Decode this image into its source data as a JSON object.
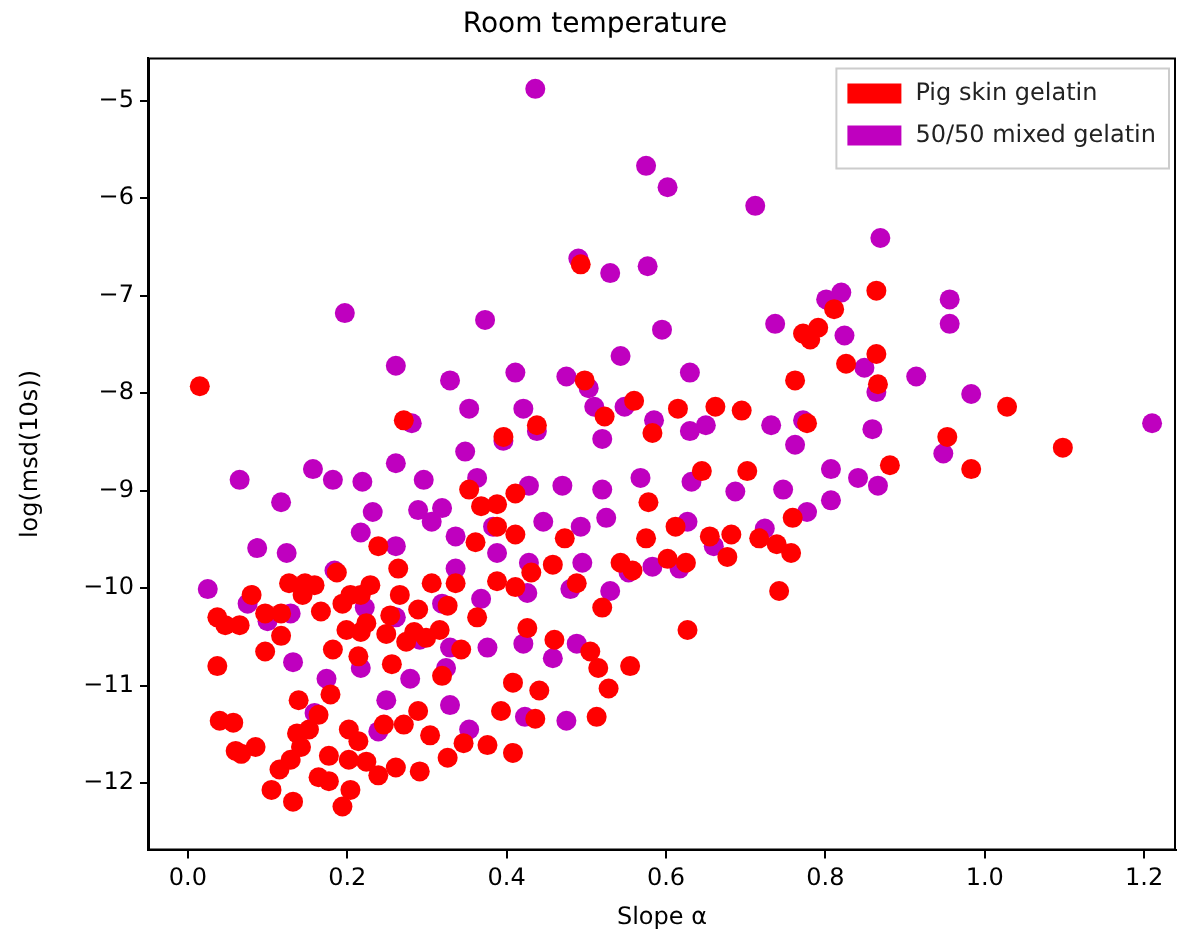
{
  "chart_data": {
    "type": "scatter",
    "title": "Room temperature",
    "xlabel": "Slope α",
    "ylabel": "log(msd(10s))",
    "xlim": [
      -0.05,
      1.24
    ],
    "ylim": [
      -12.69,
      -4.56
    ],
    "xticks": [
      {
        "value": 0,
        "label": "0.0"
      },
      {
        "value": 0.2,
        "label": "0.2"
      },
      {
        "value": 0.4,
        "label": "0.4"
      },
      {
        "value": 0.6,
        "label": "0.6"
      },
      {
        "value": 0.8,
        "label": "0.8"
      },
      {
        "value": 1.0,
        "label": "1.0"
      },
      {
        "value": 1.2,
        "label": "1.2"
      }
    ],
    "yticks": [
      {
        "value": -5,
        "label": "−5"
      },
      {
        "value": -6,
        "label": "−6"
      },
      {
        "value": -7,
        "label": "−7"
      },
      {
        "value": -8,
        "label": "−8"
      },
      {
        "value": -9,
        "label": "−9"
      },
      {
        "value": -10,
        "label": "−10"
      },
      {
        "value": -11,
        "label": "−11"
      },
      {
        "value": -12,
        "label": "−12"
      }
    ],
    "grid": false,
    "legend": "top right",
    "marker": "circle",
    "series": [
      {
        "name": "Pig skin gelatin",
        "color": "#ff0000",
        "x": [
          0.015,
          0.493,
          0.864,
          0.811,
          0.864,
          0.826,
          0.781,
          0.772,
          0.791,
          0.866,
          0.762,
          1.028,
          1.098,
          0.953,
          0.983,
          0.881,
          0.777,
          0.695,
          0.662,
          0.615,
          0.56,
          0.498,
          0.523,
          0.583,
          0.438,
          0.396,
          0.368,
          0.271,
          0.578,
          0.645,
          0.702,
          0.759,
          0.739,
          0.757,
          0.742,
          0.612,
          0.575,
          0.655,
          0.473,
          0.458,
          0.488,
          0.543,
          0.558,
          0.602,
          0.625,
          0.682,
          0.717,
          0.677,
          0.627,
          0.52,
          0.431,
          0.388,
          0.361,
          0.411,
          0.411,
          0.363,
          0.343,
          0.426,
          0.46,
          0.505,
          0.515,
          0.555,
          0.528,
          0.513,
          0.441,
          0.408,
          0.393,
          0.436,
          0.376,
          0.408,
          0.346,
          0.326,
          0.291,
          0.224,
          0.202,
          0.194,
          0.204,
          0.239,
          0.261,
          0.214,
          0.202,
          0.246,
          0.271,
          0.304,
          0.289,
          0.319,
          0.256,
          0.214,
          0.179,
          0.164,
          0.152,
          0.137,
          0.142,
          0.129,
          0.115,
          0.105,
          0.132,
          0.164,
          0.177,
          0.085,
          0.06,
          0.04,
          0.037,
          0.037,
          0.047,
          0.065,
          0.08,
          0.117,
          0.097,
          0.117,
          0.127,
          0.097,
          0.144,
          0.167,
          0.199,
          0.217,
          0.224,
          0.254,
          0.284,
          0.316,
          0.274,
          0.182,
          0.147,
          0.159,
          0.187,
          0.204,
          0.229,
          0.194,
          0.249,
          0.217,
          0.239,
          0.264,
          0.266,
          0.306,
          0.326,
          0.388,
          0.411,
          0.388,
          0.353,
          0.336,
          0.289,
          0.299,
          0.177,
          0.067,
          0.057,
          0.139
        ],
        "values": [
          -7.93,
          -6.68,
          -6.95,
          -7.14,
          -7.6,
          -7.7,
          -7.45,
          -7.39,
          -7.33,
          -7.91,
          -7.87,
          -8.14,
          -8.56,
          -8.45,
          -8.78,
          -8.74,
          -8.31,
          -8.18,
          -8.14,
          -8.16,
          -8.08,
          -7.87,
          -8.24,
          -8.41,
          -8.33,
          -8.45,
          -9.16,
          -8.28,
          -9.12,
          -8.8,
          -8.8,
          -9.28,
          -9.55,
          -9.64,
          -10.03,
          -9.37,
          -9.49,
          -9.47,
          -9.49,
          -9.76,
          -9.95,
          -9.74,
          -9.82,
          -9.7,
          -9.74,
          -9.45,
          -9.49,
          -9.68,
          -10.43,
          -10.2,
          -9.84,
          -9.93,
          -9.53,
          -9.45,
          -9.99,
          -10.3,
          -10.63,
          -10.41,
          -10.53,
          -10.65,
          -10.82,
          -10.8,
          -11.03,
          -11.32,
          -11.05,
          -10.97,
          -11.26,
          -11.34,
          -11.61,
          -11.69,
          -11.59,
          -11.74,
          -11.88,
          -11.78,
          -11.76,
          -12.24,
          -12.07,
          -11.92,
          -11.84,
          -11.57,
          -11.45,
          -11.4,
          -11.4,
          -11.51,
          -11.26,
          -10.9,
          -10.78,
          -10.7,
          -11.09,
          -11.3,
          -11.45,
          -11.49,
          -11.63,
          -11.76,
          -11.86,
          -12.07,
          -12.19,
          -11.94,
          -11.72,
          -11.63,
          -11.67,
          -11.36,
          -10.8,
          -10.3,
          -10.38,
          -10.38,
          -10.07,
          -10.26,
          -10.65,
          -10.49,
          -9.95,
          -10.26,
          -10.07,
          -10.24,
          -10.43,
          -10.45,
          -10.36,
          -10.28,
          -10.45,
          -10.43,
          -10.55,
          -10.63,
          -9.95,
          -9.97,
          -9.84,
          -10.07,
          -9.97,
          -10.16,
          -10.47,
          -10.07,
          -9.57,
          -9.8,
          -10.07,
          -9.95,
          -10.18,
          -9.37,
          -9.03,
          -9.14,
          -8.99,
          -9.95,
          -10.22,
          -10.51,
          -11.98,
          -11.7,
          -11.38,
          -11.15
        ]
      },
      {
        "name": "50/50 mixed gelatin",
        "color": "#bf00bf",
        "x": [
          0.436,
          0.575,
          0.602,
          0.712,
          0.49,
          0.577,
          0.53,
          0.869,
          0.801,
          0.956,
          0.197,
          0.373,
          0.595,
          0.956,
          0.737,
          0.824,
          0.543,
          0.411,
          0.475,
          0.914,
          0.503,
          0.864,
          0.983,
          0.63,
          0.261,
          0.329,
          0.353,
          0.421,
          0.51,
          0.548,
          0.585,
          0.281,
          0.65,
          0.732,
          0.772,
          0.859,
          1.21,
          0.396,
          0.438,
          0.348,
          0.52,
          0.63,
          0.065,
          0.182,
          0.219,
          0.261,
          0.157,
          0.296,
          0.363,
          0.428,
          0.47,
          0.52,
          0.568,
          0.632,
          0.687,
          0.747,
          0.807,
          0.841,
          0.117,
          0.232,
          0.289,
          0.319,
          0.217,
          0.306,
          0.336,
          0.383,
          0.446,
          0.493,
          0.525,
          0.627,
          0.724,
          0.777,
          0.087,
          0.124,
          0.184,
          0.261,
          0.388,
          0.428,
          0.495,
          0.553,
          0.583,
          0.617,
          0.66,
          0.025,
          0.075,
          0.129,
          0.222,
          0.261,
          0.319,
          0.368,
          0.426,
          0.48,
          0.53,
          0.336,
          0.1,
          0.132,
          0.291,
          0.329,
          0.376,
          0.421,
          0.488,
          0.458,
          0.324,
          0.279,
          0.217,
          0.249,
          0.329,
          0.423,
          0.475,
          0.353,
          0.239,
          0.159,
          0.174,
          0.762,
          0.807,
          0.82,
          0.849,
          0.948,
          0.866
        ],
        "values": [
          -4.88,
          -5.67,
          -5.89,
          -6.08,
          -6.62,
          -6.7,
          -6.77,
          -6.41,
          -7.04,
          -7.04,
          -7.18,
          -7.25,
          -7.35,
          -7.29,
          -7.29,
          -7.41,
          -7.62,
          -7.79,
          -7.83,
          -7.83,
          -7.95,
          -7.99,
          -8.01,
          -7.79,
          -7.72,
          -7.87,
          -8.16,
          -8.16,
          -8.14,
          -8.14,
          -8.28,
          -8.31,
          -8.33,
          -8.33,
          -8.28,
          -8.37,
          -8.31,
          -8.49,
          -8.39,
          -8.6,
          -8.47,
          -8.39,
          -8.89,
          -8.89,
          -8.91,
          -8.72,
          -8.78,
          -8.89,
          -8.87,
          -8.95,
          -8.95,
          -8.99,
          -8.87,
          -8.91,
          -9.01,
          -8.99,
          -8.78,
          -8.87,
          -9.12,
          -9.22,
          -9.2,
          -9.18,
          -9.43,
          -9.32,
          -9.47,
          -9.37,
          -9.32,
          -9.37,
          -9.28,
          -9.32,
          -9.39,
          -9.22,
          -9.59,
          -9.64,
          -9.82,
          -9.57,
          -9.64,
          -9.74,
          -9.74,
          -9.84,
          -9.78,
          -9.8,
          -9.57,
          -10.01,
          -10.16,
          -10.26,
          -10.2,
          -10.3,
          -10.16,
          -10.11,
          -10.05,
          -10.01,
          -10.03,
          -9.8,
          -10.34,
          -10.76,
          -10.53,
          -10.61,
          -10.61,
          -10.57,
          -10.57,
          -10.72,
          -10.82,
          -10.93,
          -10.82,
          -11.15,
          -11.2,
          -11.32,
          -11.36,
          -11.45,
          -11.47,
          -11.28,
          -10.93,
          -8.53,
          -9.1,
          -6.97,
          -7.74,
          -8.62,
          -8.95
        ]
      }
    ]
  }
}
